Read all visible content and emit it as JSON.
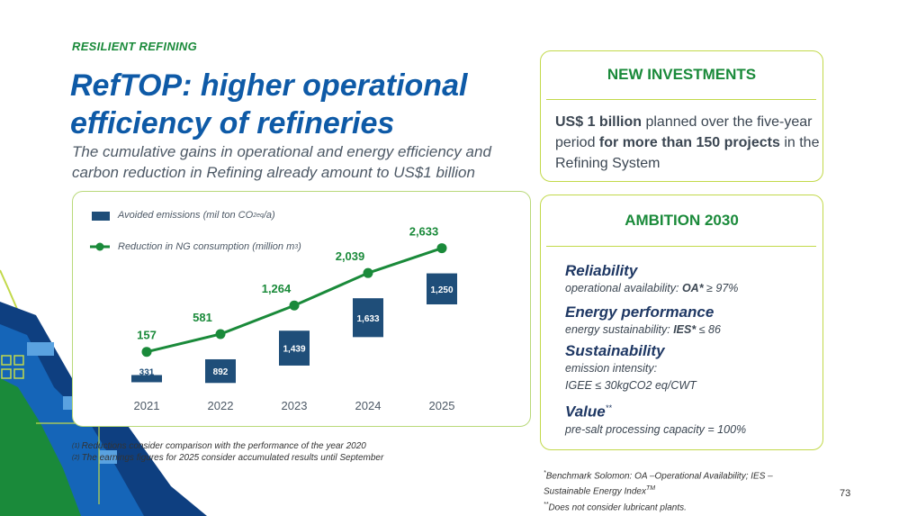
{
  "slide": {
    "section_label": "RESILIENT REFINING",
    "title_line1": "RefTOP: higher operational",
    "title_line2": "efficiency of refineries",
    "subtitle_line1": "The cumulative gains in operational and energy efficiency and",
    "subtitle_line2": "carbon reduction in Refining already amount to US$1 billion",
    "page_number": "73"
  },
  "legend": {
    "bar_label_prefix": "Avoided emissions (mil ton CO",
    "bar_label_sub": "2eq",
    "bar_label_suffix": "/a)",
    "line_label_prefix": "Reduction in NG consumption (million m",
    "line_label_sup": "3",
    "line_label_suffix": ")"
  },
  "chart_data": {
    "type": "bar+line",
    "categories": [
      "2021",
      "2022",
      "2023",
      "2024",
      "2025"
    ],
    "series": [
      {
        "name": "Avoided emissions (mil ton CO2eq/a)",
        "kind": "bar",
        "values": [
          331,
          892,
          1439,
          1633,
          1250
        ],
        "labels": [
          "331",
          "892",
          "1,439",
          "1,633",
          "1,250"
        ],
        "color": "#1f4e79"
      },
      {
        "name": "Reduction in NG consumption (million m3)",
        "kind": "line",
        "values": [
          157,
          581,
          1264,
          2039,
          2633
        ],
        "labels": [
          "157",
          "581",
          "1,264",
          "2,039",
          "2,633"
        ],
        "color": "#1a8a3a"
      }
    ]
  },
  "footnotes": {
    "note1_mark": "(1)",
    "note1": "Reductions consider comparison with the performance of the year 2020",
    "note2_mark": "(2)",
    "note2": "The earnings figures for 2025 consider accumulated results until September"
  },
  "investments": {
    "heading": "NEW INVESTMENTS",
    "amount": "US$ 1 billion",
    "text1": " planned over the five-year period ",
    "projects": "for more than 150 projects",
    "text2": " in the Refining System"
  },
  "ambition": {
    "heading": "AMBITION 2030",
    "items": [
      {
        "title": "Reliability",
        "desc_prefix": "operational availability: ",
        "desc_bold": "OA*",
        "desc_suffix": " ≥ 97%"
      },
      {
        "title": "Energy performance",
        "desc_prefix": "energy sustainability: ",
        "desc_bold": "IES*",
        "desc_suffix": " ≤ 86"
      },
      {
        "title": "Sustainability",
        "desc_line1": "emission intensity:",
        "desc_line2": "IGEE ≤ 30kgCO2 eq/CWT"
      },
      {
        "title": "Value",
        "title_sup": "**",
        "desc": "pre-salt processing capacity = 100%"
      }
    ]
  },
  "benchmark": {
    "mark": "*",
    "line1": "Benchmark Solomon: OA –Operational Availability; IES –",
    "line2": "Sustainable Energy Index",
    "line2_sup": "TM",
    "mark2": "**",
    "line3": "Does not consider lubricant plants."
  },
  "colors": {
    "brand_green": "#1a8a3a",
    "brand_blue": "#0e5aa7",
    "bar_navy": "#1f4e79",
    "border_lime": "#c2d94a"
  }
}
